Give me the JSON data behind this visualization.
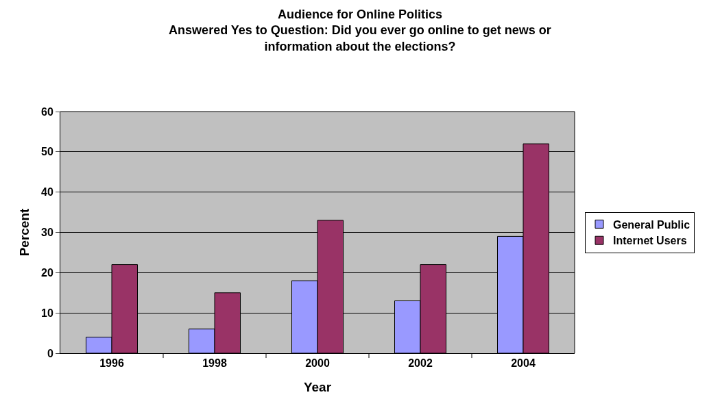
{
  "chart_data": {
    "type": "bar",
    "title": "Audience for Online Politics\nAnswered Yes to Question: Did you ever go online to get news or\ninformation about the elections?",
    "xlabel": "Year",
    "ylabel": "Percent",
    "categories": [
      "1996",
      "1998",
      "2000",
      "2002",
      "2004"
    ],
    "series": [
      {
        "name": "General Public",
        "color": "#9999ff",
        "values": [
          4,
          6,
          18,
          13,
          29
        ]
      },
      {
        "name": "Internet Users",
        "color": "#993366",
        "values": [
          22,
          15,
          33,
          22,
          52
        ]
      }
    ],
    "ylim": [
      0,
      60
    ],
    "yticks": [
      0,
      10,
      20,
      30,
      40,
      50,
      60
    ],
    "grid": "y",
    "legend": "right"
  }
}
